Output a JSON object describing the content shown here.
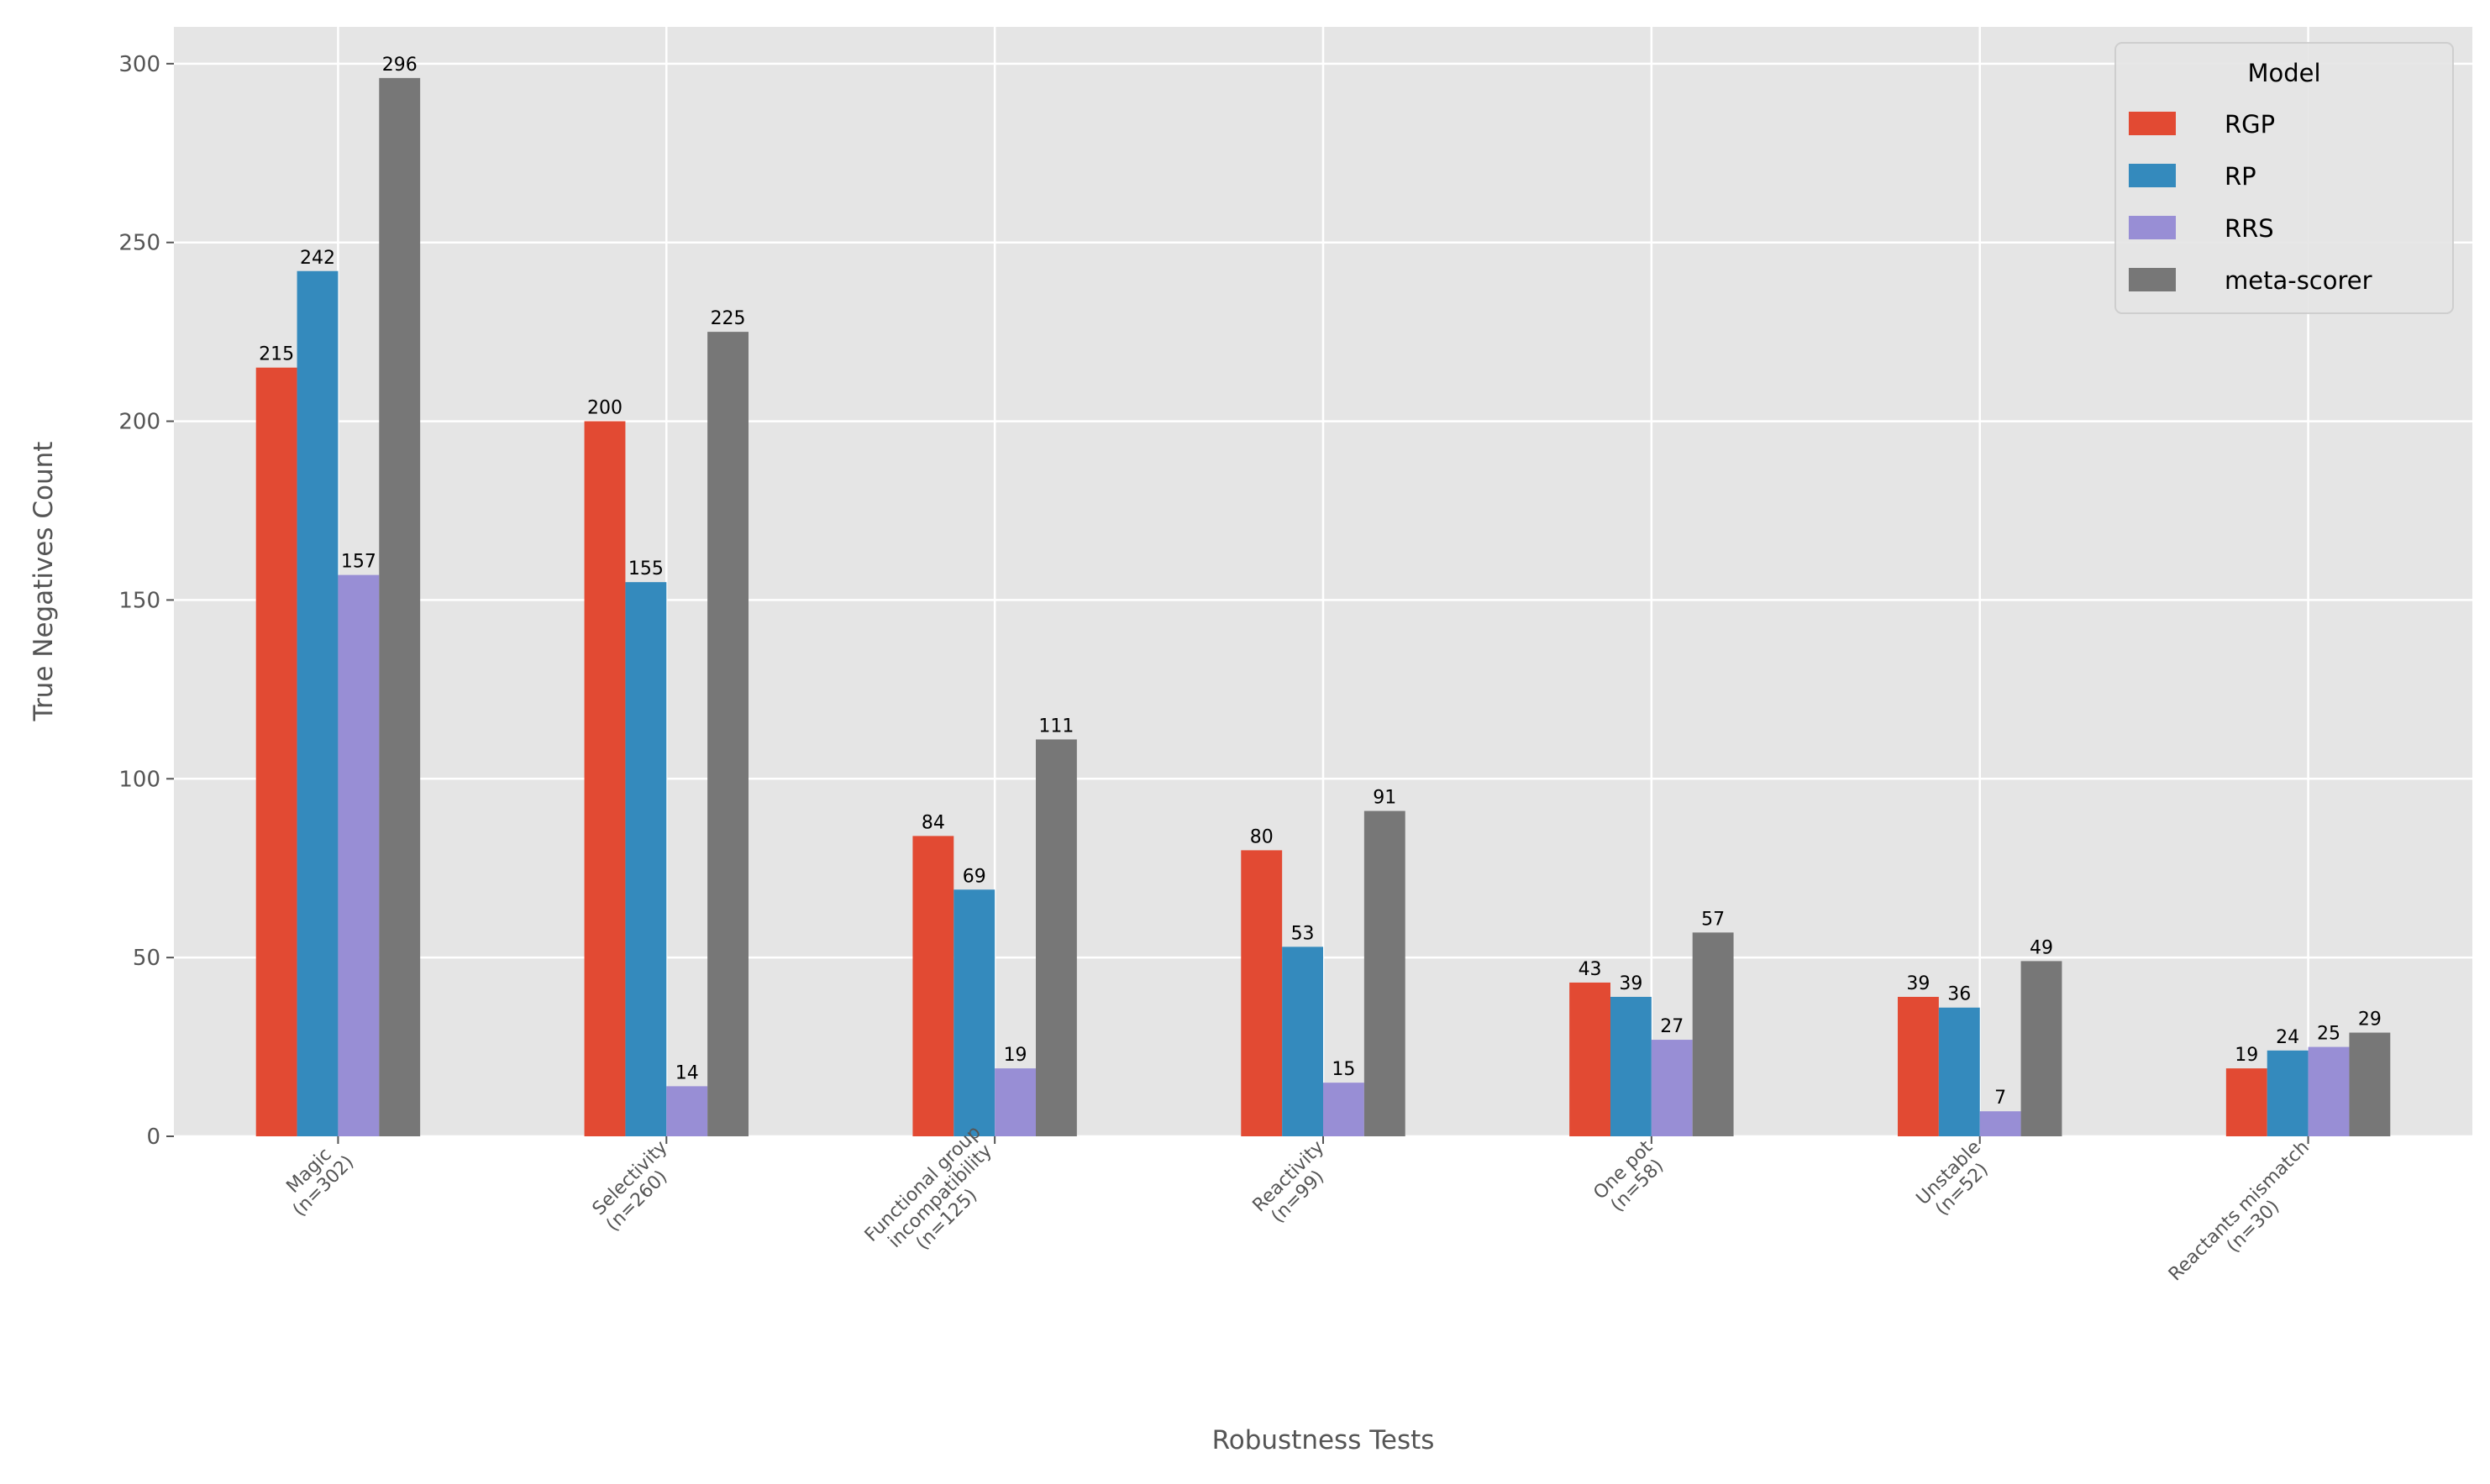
{
  "chart_data": {
    "type": "bar",
    "title": "",
    "xlabel": "Robustness Tests",
    "ylabel": "True Negatives Count",
    "ylim": [
      0,
      310
    ],
    "yticks": [
      0,
      50,
      100,
      150,
      200,
      250,
      300
    ],
    "grid": true,
    "categories": [
      "Magic\n(n=302)",
      "Selectivity\n(n=260)",
      "Functional group\nincompatibility\n(n=125)",
      "Reactivity\n(n=99)",
      "One pot\n(n=58)",
      "Unstable\n(n=52)",
      "Reactants mismatch\n(n=30)"
    ],
    "series": [
      {
        "name": "RGP",
        "color": "#E24A33",
        "values": [
          215,
          200,
          84,
          80,
          43,
          39,
          19
        ]
      },
      {
        "name": "RP",
        "color": "#348ABD",
        "values": [
          242,
          155,
          69,
          53,
          39,
          36,
          24
        ]
      },
      {
        "name": "RRS",
        "color": "#988ED5",
        "values": [
          157,
          14,
          19,
          15,
          27,
          7,
          25
        ]
      },
      {
        "name": "meta-scorer",
        "color": "#777777",
        "values": [
          296,
          225,
          111,
          91,
          57,
          49,
          29
        ]
      }
    ],
    "legend": {
      "title": "Model",
      "placement": "top-right"
    },
    "background": "#E5E5E5"
  }
}
